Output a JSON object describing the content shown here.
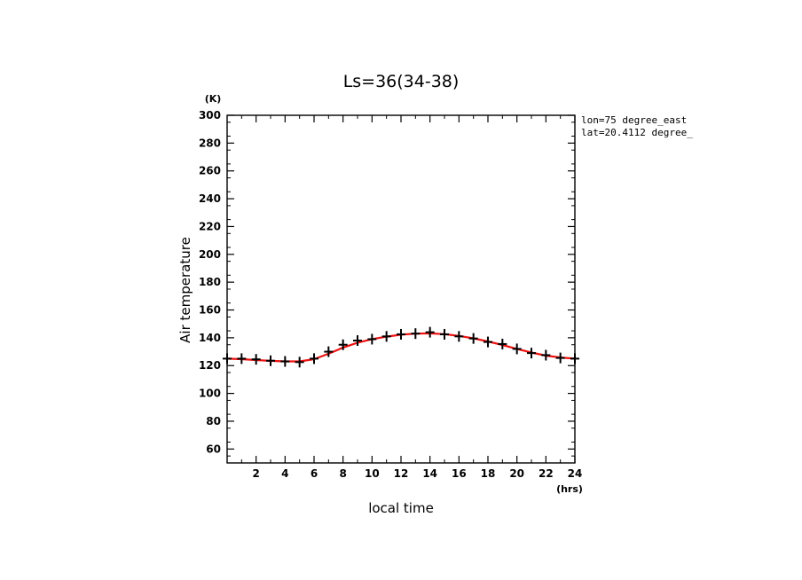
{
  "chart_data": {
    "type": "line",
    "title": "Ls=36(34-38)",
    "xlabel": "local time",
    "ylabel": "Air temperature",
    "x_unit": "(hrs)",
    "y_unit": "(K)",
    "xlim": [
      0,
      24
    ],
    "ylim": [
      50,
      300
    ],
    "x_ticks": [
      2,
      4,
      6,
      8,
      10,
      12,
      14,
      16,
      18,
      20,
      22,
      24
    ],
    "y_ticks": [
      60,
      80,
      100,
      120,
      140,
      160,
      180,
      200,
      220,
      240,
      260,
      280,
      300
    ],
    "grid": false,
    "annotations": [
      "lon=75 degree_east",
      "lat=20.4112 degree_"
    ],
    "series": [
      {
        "style": "markers",
        "marker": "plus",
        "color": "#000000",
        "x": [
          0,
          1,
          2,
          3,
          4,
          5,
          6,
          7,
          8,
          9,
          10,
          11,
          12,
          13,
          14,
          15,
          16,
          17,
          18,
          19,
          20,
          21,
          22,
          23,
          24
        ],
        "values": [
          125,
          125,
          124.5,
          123.5,
          123,
          122.5,
          125,
          130,
          135,
          138,
          139,
          141,
          142.5,
          143,
          144,
          142.5,
          141,
          139.5,
          137,
          135.5,
          132,
          129,
          127.5,
          125.5,
          125
        ]
      },
      {
        "style": "line",
        "color": "#ee1111",
        "x": [
          0,
          1,
          2,
          3,
          4,
          5,
          6,
          7,
          8,
          9,
          10,
          11,
          12,
          13,
          14,
          15,
          16,
          17,
          18,
          19,
          20,
          21,
          22,
          23,
          24
        ],
        "values": [
          125,
          124.6,
          124,
          123.4,
          123,
          123,
          124.6,
          128.5,
          133,
          136.5,
          139,
          140.8,
          142.2,
          143,
          143.2,
          142.6,
          141.3,
          139.6,
          137.4,
          134.8,
          132,
          129.4,
          127.2,
          125.8,
          125
        ]
      }
    ]
  }
}
